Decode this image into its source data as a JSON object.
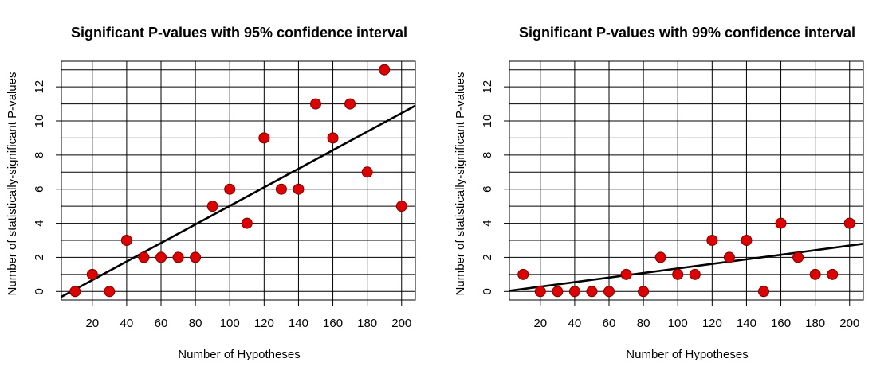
{
  "chart_data": [
    {
      "type": "scatter",
      "title": "Significant P-values with 95% confidence interval",
      "xlabel": "Number of Hypotheses",
      "ylabel": "Number of statistically-significant P-values",
      "xlim": [
        2,
        208
      ],
      "ylim": [
        -0.5,
        13.5
      ],
      "xticks": [
        20,
        40,
        60,
        80,
        100,
        120,
        140,
        160,
        180,
        200
      ],
      "yticks": [
        0,
        2,
        4,
        6,
        8,
        10,
        12
      ],
      "grid": true,
      "grid_x": [
        20,
        40,
        60,
        80,
        100,
        120,
        140,
        160,
        180,
        200
      ],
      "grid_y": [
        0,
        1,
        2,
        3,
        4,
        5,
        6,
        7,
        8,
        9,
        10,
        11,
        12,
        13
      ],
      "point_color": "#dd0000",
      "line_color": "#000000",
      "x": [
        10,
        20,
        30,
        40,
        50,
        60,
        70,
        80,
        90,
        100,
        110,
        120,
        130,
        140,
        150,
        160,
        170,
        180,
        190,
        200
      ],
      "y": [
        0,
        1,
        0,
        3,
        2,
        2,
        2,
        2,
        5,
        6,
        4,
        9,
        6,
        6,
        11,
        9,
        11,
        7,
        13,
        5
      ],
      "fit": {
        "intercept": -0.42,
        "slope": 0.0544
      }
    },
    {
      "type": "scatter",
      "title": "Significant P-values with 99% confidence interval",
      "xlabel": "Number of Hypotheses",
      "ylabel": "Number of statistically-significant P-values",
      "xlim": [
        2,
        208
      ],
      "ylim": [
        -0.5,
        13.5
      ],
      "xticks": [
        20,
        40,
        60,
        80,
        100,
        120,
        140,
        160,
        180,
        200
      ],
      "yticks": [
        0,
        2,
        4,
        6,
        8,
        10,
        12
      ],
      "grid": true,
      "grid_x": [
        20,
        40,
        60,
        80,
        100,
        120,
        140,
        160,
        180,
        200
      ],
      "grid_y": [
        0,
        1,
        2,
        3,
        4,
        5,
        6,
        7,
        8,
        9,
        10,
        11,
        12,
        13
      ],
      "point_color": "#dd0000",
      "line_color": "#000000",
      "x": [
        10,
        20,
        30,
        40,
        50,
        60,
        70,
        80,
        90,
        100,
        110,
        120,
        130,
        140,
        150,
        160,
        170,
        180,
        190,
        200
      ],
      "y": [
        1,
        0,
        0,
        0,
        0,
        0,
        1,
        0,
        2,
        1,
        1,
        3,
        2,
        3,
        0,
        4,
        2,
        1,
        1,
        4
      ],
      "fit": {
        "intercept": 0.01,
        "slope": 0.0134
      }
    }
  ]
}
